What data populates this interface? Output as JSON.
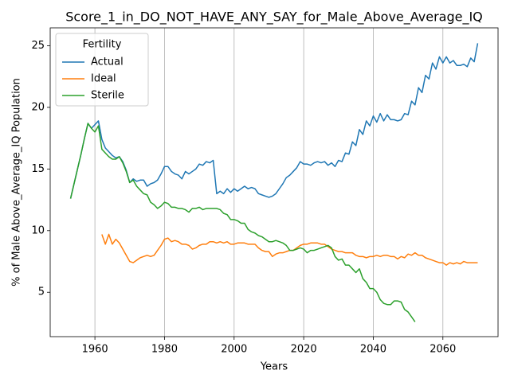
{
  "chart_data": {
    "type": "line",
    "title": "Score_1_in_DO_NOT_HAVE_ANY_SAY_for_Male_Above_Average_IQ",
    "x_label": "Years",
    "y_label": "% of Male Above_Average_IQ Population",
    "legend_title": "Fertility",
    "legend": "upper left",
    "grid": "x",
    "xlim": [
      1947.15,
      2075.85
    ],
    "ylim": [
      1.4,
      26.45
    ],
    "xticks": [
      1960,
      1980,
      2000,
      2020,
      2040,
      2060
    ],
    "yticks": [
      5,
      10,
      15,
      20,
      25
    ],
    "x": [
      1953,
      1954,
      1955,
      1956,
      1957,
      1958,
      1959,
      1960,
      1961,
      1962,
      1963,
      1964,
      1965,
      1966,
      1967,
      1968,
      1969,
      1970,
      1971,
      1972,
      1973,
      1974,
      1975,
      1976,
      1977,
      1978,
      1979,
      1980,
      1981,
      1982,
      1983,
      1984,
      1985,
      1986,
      1987,
      1988,
      1989,
      1990,
      1991,
      1992,
      1993,
      1994,
      1995,
      1996,
      1997,
      1998,
      1999,
      2000,
      2001,
      2002,
      2003,
      2004,
      2005,
      2006,
      2007,
      2008,
      2009,
      2010,
      2011,
      2012,
      2013,
      2014,
      2015,
      2016,
      2017,
      2018,
      2019,
      2020,
      2021,
      2022,
      2023,
      2024,
      2025,
      2026,
      2027,
      2028,
      2029,
      2030,
      2031,
      2032,
      2033,
      2034,
      2035,
      2036,
      2037,
      2038,
      2039,
      2040,
      2041,
      2042,
      2043,
      2044,
      2045,
      2046,
      2047,
      2048,
      2049,
      2050,
      2051,
      2052,
      2053,
      2054,
      2055,
      2056,
      2057,
      2058,
      2059,
      2060,
      2061,
      2062,
      2063,
      2064,
      2065,
      2066,
      2067,
      2068,
      2069,
      2070
    ],
    "series": [
      {
        "name": "Actual",
        "color": "#1f77b4",
        "values": [
          12.6,
          13.8,
          15.0,
          16.2,
          17.5,
          18.7,
          18.3,
          18.6,
          18.9,
          17.4,
          16.7,
          16.4,
          16.1,
          15.9,
          16.0,
          15.6,
          14.9,
          13.9,
          14.2,
          14.0,
          14.1,
          14.1,
          13.6,
          13.8,
          13.9,
          14.1,
          14.6,
          15.2,
          15.2,
          14.8,
          14.6,
          14.5,
          14.2,
          14.8,
          14.6,
          14.8,
          15.0,
          15.4,
          15.3,
          15.6,
          15.5,
          15.7,
          13.0,
          13.2,
          13.0,
          13.4,
          13.1,
          13.4,
          13.2,
          13.4,
          13.6,
          13.4,
          13.5,
          13.4,
          13.0,
          12.9,
          12.8,
          12.7,
          12.8,
          13.0,
          13.4,
          13.8,
          14.3,
          14.5,
          14.8,
          15.1,
          15.6,
          15.4,
          15.4,
          15.3,
          15.5,
          15.6,
          15.5,
          15.6,
          15.3,
          15.5,
          15.2,
          15.7,
          15.6,
          16.3,
          16.2,
          17.2,
          16.9,
          18.2,
          17.8,
          18.9,
          18.5,
          19.3,
          18.8,
          19.5,
          18.9,
          19.4,
          19.0,
          19.0,
          18.9,
          19.0,
          19.5,
          19.4,
          20.5,
          20.2,
          21.6,
          21.2,
          22.6,
          22.3,
          23.6,
          23.1,
          24.1,
          23.6,
          24.1,
          23.6,
          23.8,
          23.4,
          23.4,
          23.5,
          23.3,
          24.0,
          23.7,
          25.2
        ]
      },
      {
        "name": "Ideal",
        "color": "#ff7f0e",
        "values": [
          null,
          null,
          null,
          null,
          null,
          null,
          null,
          null,
          null,
          9.7,
          8.9,
          9.7,
          8.9,
          9.3,
          9.0,
          8.5,
          8.0,
          7.5,
          7.4,
          7.6,
          7.8,
          7.9,
          8.0,
          7.9,
          8.0,
          8.4,
          8.8,
          9.3,
          9.4,
          9.1,
          9.2,
          9.1,
          8.9,
          8.9,
          8.8,
          8.5,
          8.6,
          8.8,
          8.9,
          8.9,
          9.1,
          9.1,
          9.0,
          9.1,
          9.0,
          9.1,
          8.9,
          8.9,
          9.0,
          9.0,
          9.0,
          8.9,
          8.9,
          8.9,
          8.6,
          8.4,
          8.3,
          8.3,
          7.9,
          8.1,
          8.2,
          8.2,
          8.3,
          8.4,
          8.4,
          8.6,
          8.8,
          8.9,
          8.9,
          9.0,
          9.0,
          9.0,
          8.9,
          8.9,
          8.7,
          8.5,
          8.4,
          8.3,
          8.3,
          8.2,
          8.2,
          8.2,
          8.0,
          7.9,
          7.9,
          7.8,
          7.9,
          7.9,
          8.0,
          7.9,
          8.0,
          8.0,
          7.9,
          7.9,
          7.7,
          7.9,
          7.8,
          8.1,
          8.0,
          8.2,
          8.0,
          8.0,
          7.8,
          7.7,
          7.6,
          7.5,
          7.4,
          7.4,
          7.2,
          7.4,
          7.3,
          7.4,
          7.3,
          7.5,
          7.4,
          7.4,
          7.4,
          7.4
        ]
      },
      {
        "name": "Sterile",
        "color": "#2ca02c",
        "values": [
          12.6,
          13.8,
          15.0,
          16.2,
          17.5,
          18.7,
          18.3,
          18.0,
          18.5,
          16.6,
          16.3,
          16.0,
          15.8,
          15.8,
          16.0,
          15.5,
          14.8,
          13.9,
          14.1,
          13.6,
          13.3,
          13.0,
          12.9,
          12.3,
          12.1,
          11.8,
          12.0,
          12.3,
          12.2,
          11.9,
          11.9,
          11.8,
          11.8,
          11.7,
          11.5,
          11.8,
          11.8,
          11.9,
          11.7,
          11.8,
          11.8,
          11.8,
          11.8,
          11.7,
          11.4,
          11.3,
          10.9,
          10.9,
          10.8,
          10.6,
          10.6,
          10.1,
          9.9,
          9.8,
          9.6,
          9.5,
          9.3,
          9.1,
          9.1,
          9.2,
          9.1,
          9.0,
          8.8,
          8.4,
          8.4,
          8.5,
          8.6,
          8.5,
          8.2,
          8.4,
          8.4,
          8.5,
          8.6,
          8.7,
          8.8,
          8.6,
          7.9,
          7.6,
          7.7,
          7.2,
          7.2,
          6.9,
          6.6,
          6.9,
          6.1,
          5.8,
          5.3,
          5.3,
          5.0,
          4.4,
          4.1,
          4.0,
          4.0,
          4.3,
          4.3,
          4.2,
          3.6,
          3.4,
          3.0,
          2.6,
          null,
          null,
          null,
          null,
          null,
          null,
          null,
          null,
          null,
          null,
          null,
          null,
          null,
          null,
          null,
          null,
          null,
          null
        ]
      }
    ]
  }
}
